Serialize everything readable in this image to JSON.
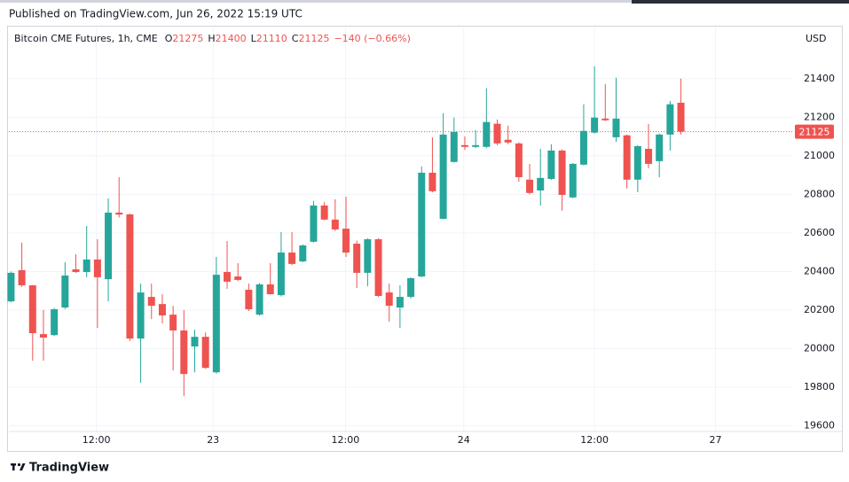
{
  "published": "Published on TradingView.com, Jun 26, 2022 15:19 UTC",
  "brand": "TradingView",
  "chart_data": {
    "type": "candlestick",
    "title": "Bitcoin CME Futures, 1h, CME",
    "ohlc_labels": [
      "O",
      "H",
      "L",
      "C"
    ],
    "change": "−140 (−0.66%)",
    "y_label": "USD",
    "up_color": "#26a69a",
    "down_color": "#ef5350",
    "grid": true,
    "open": [
      20245,
      20407,
      20328,
      20075,
      20070,
      20213,
      20411,
      20397,
      20462,
      20360,
      20705,
      20696,
      20052,
      20268,
      20231,
      20176,
      20094,
      20011,
      20061,
      19877,
      20397,
      20374,
      20305,
      20176,
      20333,
      20277,
      20498,
      20452,
      20554,
      20742,
      20669,
      20622,
      20544,
      20393,
      20567,
      20291,
      20213,
      20268,
      20374,
      20912,
      20673,
      20968,
      21055,
      21046,
      21046,
      21166,
      21083,
      21064,
      20876,
      20820,
      20880,
      21027,
      20784,
      20954,
      21120,
      21193,
      21096,
      21106,
      20876,
      21036,
      20972,
      21110,
      21275
    ],
    "high": [
      20400,
      20549,
      20330,
      20200,
      20210,
      20448,
      20489,
      20636,
      20567,
      20779,
      20889,
      20700,
      20337,
      20337,
      20282,
      20222,
      20200,
      20098,
      20084,
      20475,
      20558,
      20443,
      20337,
      20340,
      20443,
      20604,
      20604,
      20540,
      20765,
      20760,
      20774,
      20788,
      20560,
      20572,
      20572,
      20337,
      20328,
      20370,
      20945,
      21096,
      21221,
      21198,
      21100,
      21133,
      21350,
      21188,
      21156,
      21070,
      20958,
      21036,
      21060,
      21033,
      20962,
      21267,
      21464,
      21372,
      21405,
      21110,
      21055,
      21165,
      21115,
      21285,
      21400
    ],
    "low": [
      20240,
      20320,
      19937,
      19937,
      20065,
      20205,
      20392,
      20370,
      20107,
      20245,
      20680,
      20040,
      19822,
      20153,
      20130,
      19887,
      19753,
      19877,
      19895,
      19870,
      20310,
      20350,
      20195,
      20170,
      20280,
      20270,
      20432,
      20448,
      20550,
      20665,
      20610,
      20475,
      20314,
      20323,
      20268,
      20140,
      20107,
      20260,
      20370,
      20810,
      20670,
      20965,
      21030,
      21040,
      21040,
      21055,
      21060,
      20866,
      20800,
      20742,
      20875,
      20715,
      20780,
      20950,
      21115,
      21180,
      21073,
      20830,
      20811,
      20935,
      20889,
      21027,
      21110
    ],
    "close": [
      20393,
      20328,
      20080,
      20057,
      20204,
      20379,
      20397,
      20462,
      20370,
      20705,
      20695,
      20052,
      20291,
      20222,
      20172,
      20094,
      19868,
      20061,
      19900,
      20383,
      20347,
      20356,
      20204,
      20333,
      20282,
      20498,
      20439,
      20535,
      20742,
      20669,
      20618,
      20498,
      20393,
      20567,
      20273,
      20222,
      20268,
      20365,
      20912,
      20816,
      21110,
      21124,
      21046,
      21055,
      21175,
      21064,
      21069,
      20889,
      20807,
      20885,
      21027,
      20797,
      20958,
      21129,
      21198,
      21184,
      21193,
      20876,
      21050,
      20958,
      21110,
      21267,
      21125
    ],
    "xlim": [
      -0.2,
      72.3
    ],
    "xticks": [
      {
        "value": 7.9,
        "label": "12:00"
      },
      {
        "value": 18.7,
        "label": "23"
      },
      {
        "value": 30.95,
        "label": "12:00"
      },
      {
        "value": 41.9,
        "label": "24"
      },
      {
        "value": 54.0,
        "label": "12:00"
      },
      {
        "value": 65.2,
        "label": "27"
      }
    ],
    "ylim": [
      19570,
      21670
    ],
    "yticks": [
      19600,
      19800,
      20000,
      20200,
      20400,
      20600,
      20800,
      21000,
      21200,
      21400
    ]
  }
}
